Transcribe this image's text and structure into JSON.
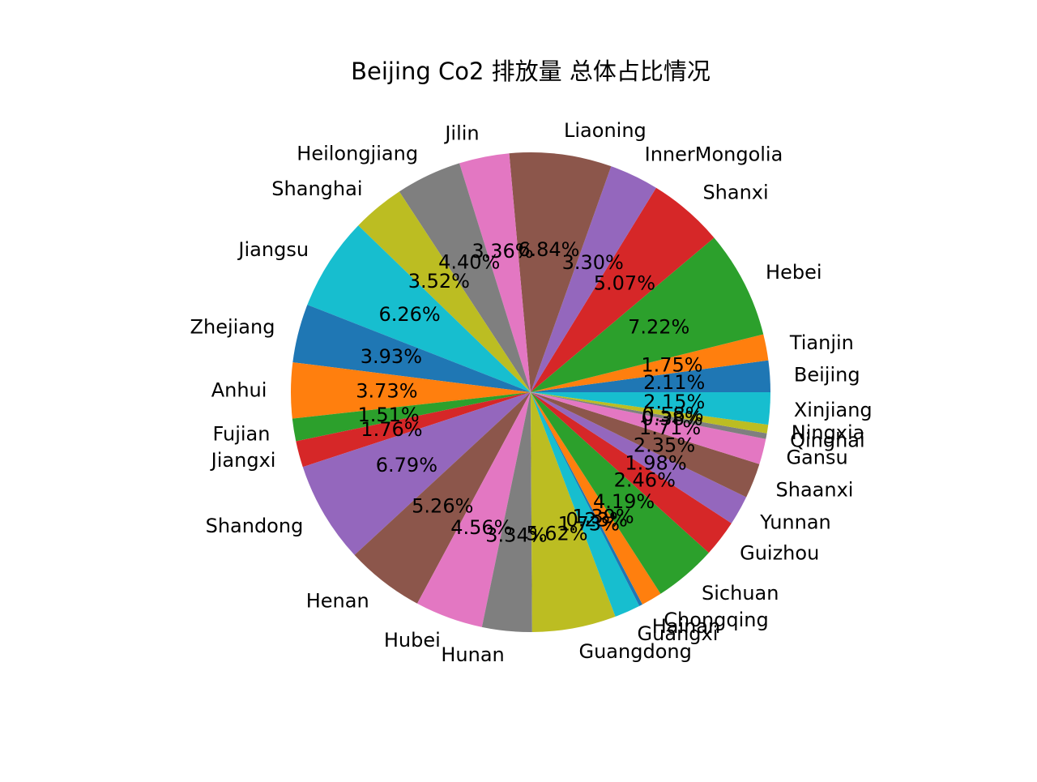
{
  "chart_data": {
    "type": "pie",
    "title": "Beijing Co2 排放量 总体占比情况",
    "start_angle_deg": 0,
    "direction": "counterclockwise",
    "autopct_format": "{v:.2f}%",
    "slices": [
      {
        "label": "Beijing",
        "value": 2.11,
        "color": "#1f77b4"
      },
      {
        "label": "Tianjin",
        "value": 1.75,
        "color": "#ff7f0e"
      },
      {
        "label": "Hebei",
        "value": 7.22,
        "color": "#2ca02c"
      },
      {
        "label": "Shanxi",
        "value": 5.07,
        "color": "#d62728"
      },
      {
        "label": "InnerMongolia",
        "value": 3.3,
        "color": "#9467bd"
      },
      {
        "label": "Liaoning",
        "value": 6.84,
        "color": "#8c564b"
      },
      {
        "label": "Jilin",
        "value": 3.36,
        "color": "#e377c2"
      },
      {
        "label": "Heilongjiang",
        "value": 4.4,
        "color": "#7f7f7f"
      },
      {
        "label": "Shanghai",
        "value": 3.52,
        "color": "#bcbd22"
      },
      {
        "label": "Jiangsu",
        "value": 6.26,
        "color": "#17becf"
      },
      {
        "label": "Zhejiang",
        "value": 3.93,
        "color": "#1f77b4"
      },
      {
        "label": "Anhui",
        "value": 3.73,
        "color": "#ff7f0e"
      },
      {
        "label": "Fujian",
        "value": 1.51,
        "color": "#2ca02c"
      },
      {
        "label": "Jiangxi",
        "value": 1.76,
        "color": "#d62728"
      },
      {
        "label": "Shandong",
        "value": 6.79,
        "color": "#9467bd"
      },
      {
        "label": "Henan",
        "value": 5.26,
        "color": "#8c564b"
      },
      {
        "label": "Hubei",
        "value": 4.56,
        "color": "#e377c2"
      },
      {
        "label": "Hunan",
        "value": 3.34,
        "color": "#7f7f7f"
      },
      {
        "label": "Guangdong",
        "value": 5.62,
        "color": "#bcbd22"
      },
      {
        "label": "Guangxi",
        "value": 1.73,
        "color": "#17becf"
      },
      {
        "label": "Hainan",
        "value": 0.23,
        "color": "#1f77b4"
      },
      {
        "label": "Chongqing",
        "value": 1.39,
        "color": "#ff7f0e"
      },
      {
        "label": "Sichuan",
        "value": 4.19,
        "color": "#2ca02c"
      },
      {
        "label": "Guizhou",
        "value": 2.46,
        "color": "#d62728"
      },
      {
        "label": "Yunnan",
        "value": 1.98,
        "color": "#9467bd"
      },
      {
        "label": "Shaanxi",
        "value": 2.35,
        "color": "#8c564b"
      },
      {
        "label": "Gansu",
        "value": 1.71,
        "color": "#e377c2"
      },
      {
        "label": "Qinghai",
        "value": 0.38,
        "color": "#7f7f7f"
      },
      {
        "label": "Ningxia",
        "value": 0.58,
        "color": "#bcbd22"
      },
      {
        "label": "Xinjiang",
        "value": 2.15,
        "color": "#17becf"
      }
    ]
  }
}
